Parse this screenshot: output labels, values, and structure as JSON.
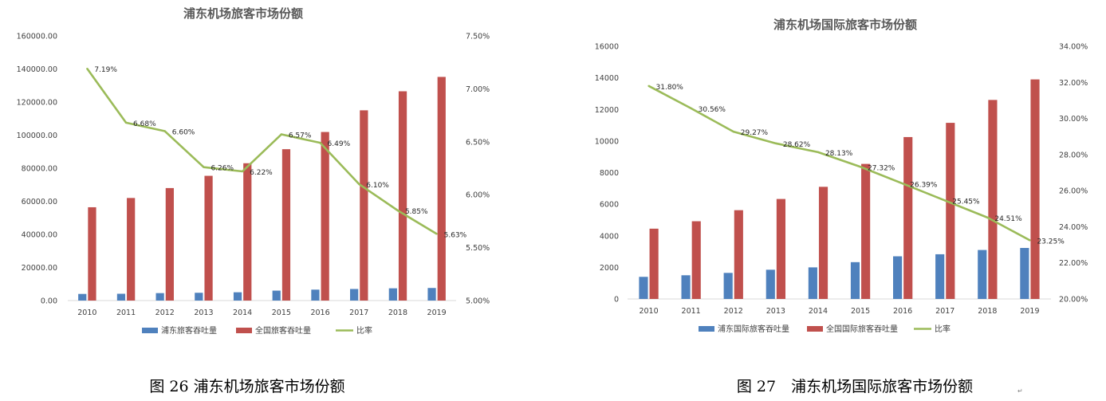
{
  "chart_data": [
    {
      "type": "bar",
      "title": "浦东机场旅客市场份额",
      "categories": [
        "2010",
        "2011",
        "2012",
        "2013",
        "2014",
        "2015",
        "2016",
        "2017",
        "2018",
        "2019"
      ],
      "series": [
        {
          "name": "浦东旅客吞吐量",
          "kind": "bar",
          "axis": "left",
          "color": "#4F81BD",
          "values": [
            4000,
            4100,
            4500,
            4700,
            5000,
            6000,
            6600,
            7000,
            7400,
            7600
          ]
        },
        {
          "name": "全国旅客吞吐量",
          "kind": "bar",
          "axis": "left",
          "color": "#C0504D",
          "values": [
            56400,
            62000,
            68000,
            75400,
            83000,
            91500,
            101900,
            115000,
            126500,
            135200
          ]
        },
        {
          "name": "比率",
          "kind": "line",
          "axis": "right",
          "color": "#9BBB59",
          "values": [
            7.19,
            6.68,
            6.6,
            6.26,
            6.22,
            6.57,
            6.49,
            6.1,
            5.85,
            5.63
          ],
          "labels": [
            "7.19%",
            "6.68%",
            "6.60%",
            "6.26%",
            "6.22%",
            "6.57%",
            "6.49%",
            "6.10%",
            "5.85%",
            "5.63%"
          ]
        }
      ],
      "ylim_left": [
        0,
        160000
      ],
      "yticks_left": [
        "0.00",
        "20000.00",
        "40000.00",
        "60000.00",
        "80000.00",
        "100000.00",
        "120000.00",
        "140000.00",
        "160000.00"
      ],
      "ylim_right": [
        5.0,
        7.5
      ],
      "yticks_right": [
        "5.00%",
        "5.50%",
        "6.00%",
        "6.50%",
        "7.00%",
        "7.50%"
      ],
      "grid": false,
      "legend_position": "bottom",
      "caption": "图 26 浦东机场旅客市场份额"
    },
    {
      "type": "bar",
      "title": "浦东机场国际旅客市场份额",
      "categories": [
        "2010",
        "2011",
        "2012",
        "2013",
        "2014",
        "2015",
        "2016",
        "2017",
        "2018",
        "2019"
      ],
      "series": [
        {
          "name": "浦东国际旅客吞吐量",
          "kind": "bar",
          "axis": "left",
          "color": "#4F81BD",
          "values": [
            1400,
            1500,
            1650,
            1850,
            2000,
            2330,
            2700,
            2830,
            3100,
            3230
          ]
        },
        {
          "name": "全国国际旅客吞吐量",
          "kind": "bar",
          "axis": "left",
          "color": "#C0504D",
          "values": [
            4450,
            4920,
            5620,
            6330,
            7100,
            8550,
            10250,
            11150,
            12600,
            13900
          ]
        },
        {
          "name": "比率",
          "kind": "line",
          "axis": "right",
          "color": "#9BBB59",
          "values": [
            31.8,
            30.56,
            29.27,
            28.62,
            28.13,
            27.32,
            26.39,
            25.45,
            24.51,
            23.25
          ],
          "labels": [
            "31.80%",
            "30.56%",
            "29.27%",
            "28.62%",
            "28.13%",
            "27.32%",
            "26.39%",
            "25.45%",
            "24.51%",
            "23.25%"
          ]
        }
      ],
      "ylim_left": [
        0,
        16000
      ],
      "yticks_left": [
        "0",
        "2000",
        "4000",
        "6000",
        "8000",
        "10000",
        "12000",
        "14000",
        "16000"
      ],
      "ylim_right": [
        20.0,
        34.0
      ],
      "yticks_right": [
        "20.00%",
        "22.00%",
        "24.00%",
        "26.00%",
        "28.00%",
        "30.00%",
        "32.00%",
        "34.00%"
      ],
      "grid": false,
      "legend_position": "bottom",
      "caption": "图 27　浦东机场国际旅客市场份额",
      "trailing_mark": "↵"
    }
  ]
}
